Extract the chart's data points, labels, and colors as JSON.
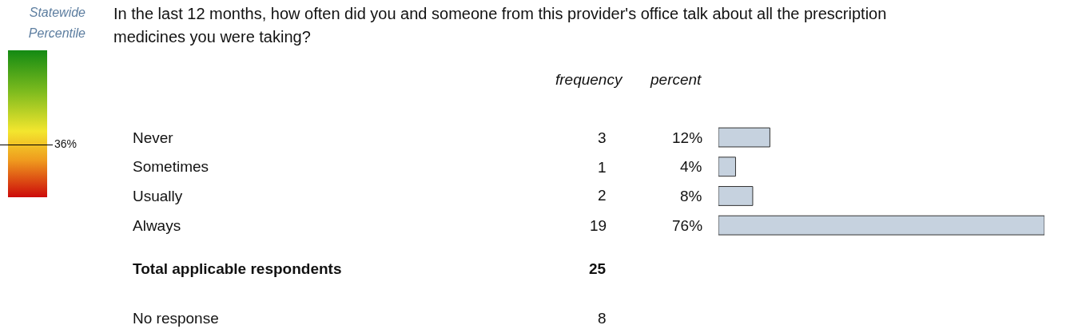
{
  "chart_data": [
    {
      "type": "other",
      "title": "Statewide Percentile",
      "values": [
        36
      ],
      "value_labels": [
        "36%"
      ]
    },
    {
      "type": "bar",
      "orientation": "horizontal",
      "title": "In the last 12 months, how often did you and someone from this provider's office talk about all the prescription medicines you were taking?",
      "categories": [
        "Never",
        "Sometimes",
        "Usually",
        "Always"
      ],
      "values": [
        12,
        4,
        8,
        76
      ],
      "value_labels": [
        "12%",
        "4%",
        "8%",
        "76%"
      ],
      "color": "#c6d2df",
      "annotations": [
        "frequency",
        "percent",
        "3",
        "1",
        "2",
        "19",
        "Total applicable respondents",
        "25",
        "No response",
        "8"
      ]
    }
  ]
}
